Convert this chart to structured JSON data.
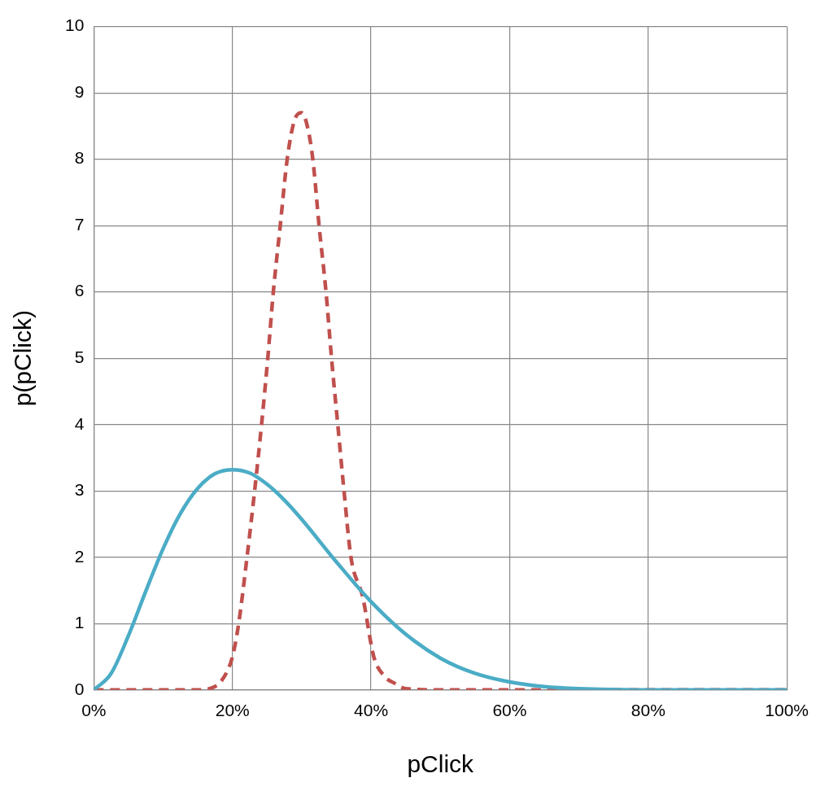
{
  "chart_data": {
    "type": "line",
    "xlabel": "pClick",
    "ylabel": "p(pClick)",
    "xlim": [
      0,
      100
    ],
    "ylim": [
      0,
      10
    ],
    "xticks": [
      {
        "value": 0,
        "label": "0%"
      },
      {
        "value": 20,
        "label": "20%"
      },
      {
        "value": 40,
        "label": "40%"
      },
      {
        "value": 60,
        "label": "60%"
      },
      {
        "value": 80,
        "label": "80%"
      },
      {
        "value": 100,
        "label": "100%"
      }
    ],
    "yticks": [
      0,
      1,
      2,
      3,
      4,
      5,
      6,
      7,
      8,
      9,
      10
    ],
    "grid": true,
    "legend": false,
    "marker": "none",
    "series": [
      {
        "color": "#4bacc6",
        "line_style": "solid",
        "x": [
          0,
          2.5,
          5,
          7.5,
          10,
          12.5,
          15,
          17.5,
          20,
          22.5,
          25,
          27.5,
          30,
          35,
          40,
          45,
          50,
          55,
          60,
          65,
          70,
          80,
          90,
          100
        ],
        "values": [
          0,
          0.25,
          0.82,
          1.49,
          2.13,
          2.66,
          3.04,
          3.26,
          3.32,
          3.27,
          3.1,
          2.86,
          2.57,
          1.93,
          1.33,
          0.84,
          0.48,
          0.25,
          0.12,
          0.05,
          0.02,
          0,
          0,
          0
        ]
      },
      {
        "color": "#c0504d",
        "line_style": "dashed",
        "x": [
          0,
          10,
          15,
          17,
          18.5,
          20,
          20.9,
          22.1,
          23.2,
          24.2,
          25.1,
          25.9,
          26.9,
          27.9,
          29,
          30,
          30.8,
          31.6,
          32.5,
          33.5,
          34.3,
          35.2,
          36.1,
          37.1,
          38.8,
          40.4,
          42,
          43.4,
          45,
          50,
          60,
          80,
          100
        ],
        "values": [
          0,
          0,
          0,
          0.03,
          0.15,
          0.5,
          1,
          2,
          3,
          4,
          5,
          6,
          7,
          8,
          8.6,
          8.7,
          8.5,
          8,
          7,
          6,
          5,
          4,
          3,
          2,
          1.4,
          0.5,
          0.2,
          0.1,
          0.02,
          0,
          0,
          0,
          0
        ]
      }
    ]
  }
}
